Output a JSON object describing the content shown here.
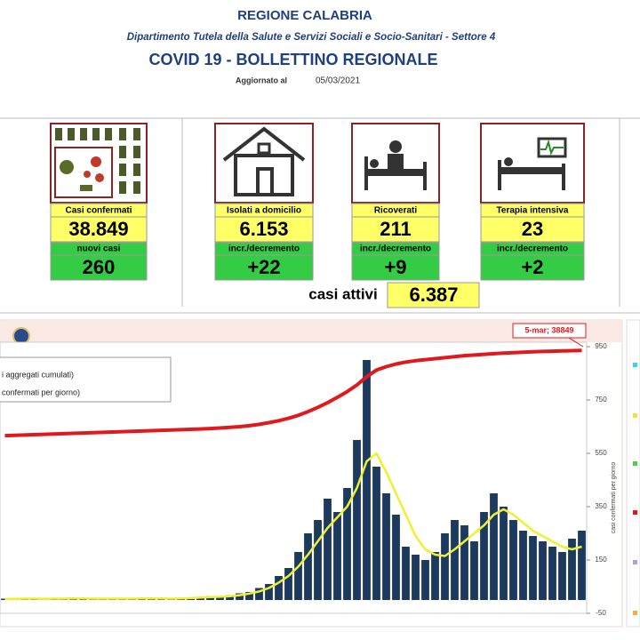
{
  "header": {
    "region": "REGIONE CALABRIA",
    "department": "Dipartimento Tutela della Salute e Servizi Sociali e Socio-Sanitari - Settore 4",
    "title": "COVID 19 - BOLLETTINO REGIONALE",
    "updated_label": "Aggiornato al",
    "updated_date": "05/03/2021"
  },
  "cards": [
    {
      "label": "Casi confermati",
      "value": "38.849",
      "change_label": "nuovi casi",
      "change": "260"
    },
    {
      "label": "Isolati a domicilio",
      "value": "6.153",
      "change_label": "incr./decremento",
      "change": "+22"
    },
    {
      "label": "Ricoverati",
      "value": "211",
      "change_label": "incr./decremento",
      "change": "+9"
    },
    {
      "label": "Terapia intensiva",
      "value": "23",
      "change_label": "incr./decremento",
      "change": "+2"
    }
  ],
  "active": {
    "label": "casi attivi",
    "value": "6.387"
  },
  "chart_data": {
    "type": "combo",
    "y_label": "casi confermati per giorno",
    "annotation": "5-mar; 38849",
    "ylim": [
      -50,
      950
    ],
    "yticks": [
      950,
      750,
      550,
      350,
      150,
      -50
    ],
    "y2lim": [
      -40000,
      40000
    ],
    "series": [
      {
        "name": "confermati per giorno)",
        "kind": "bar",
        "color": "#1c3a5e",
        "values": [
          5,
          3,
          8,
          2,
          4,
          6,
          3,
          10,
          5,
          4,
          2,
          7,
          3,
          5,
          8,
          4,
          6,
          3,
          5,
          9,
          12,
          15,
          10,
          18,
          25,
          30,
          45,
          60,
          90,
          120,
          180,
          250,
          300,
          380,
          330,
          420,
          600,
          900,
          500,
          400,
          320,
          200,
          170,
          150,
          180,
          250,
          300,
          280,
          220,
          330,
          400,
          350,
          300,
          260,
          240,
          220,
          200,
          180,
          230,
          260
        ]
      },
      {
        "kind": "line",
        "color": "#f0f032",
        "values": [
          4,
          4,
          5,
          5,
          4,
          5,
          5,
          6,
          6,
          5,
          5,
          5,
          5,
          5,
          6,
          6,
          6,
          5,
          6,
          7,
          9,
          11,
          12,
          14,
          18,
          24,
          32,
          45,
          65,
          90,
          125,
          170,
          220,
          270,
          310,
          350,
          420,
          520,
          550,
          480,
          400,
          320,
          240,
          190,
          170,
          165,
          190,
          220,
          250,
          280,
          320,
          340,
          320,
          290,
          260,
          240,
          220,
          200,
          190,
          200
        ]
      },
      {
        "name": "i aggregati cumulati)",
        "kind": "line",
        "axis": "y2",
        "color": "#e0191e",
        "values": [
          13300,
          13400,
          13500,
          13600,
          13700,
          13800,
          13900,
          14000,
          14100,
          14200,
          14300,
          14400,
          14500,
          14600,
          14700,
          14800,
          14900,
          15000,
          15100,
          15200,
          15300,
          15450,
          15600,
          15800,
          16000,
          16300,
          16700,
          17200,
          17800,
          18500,
          19400,
          20500,
          21800,
          23200,
          24800,
          26500,
          28500,
          31000,
          33000,
          34000,
          34800,
          35400,
          35800,
          36100,
          36400,
          36700,
          37000,
          37300,
          37500,
          37700,
          37900,
          38050,
          38200,
          38350,
          38450,
          38550,
          38650,
          38720,
          38790,
          38849
        ]
      }
    ]
  }
}
